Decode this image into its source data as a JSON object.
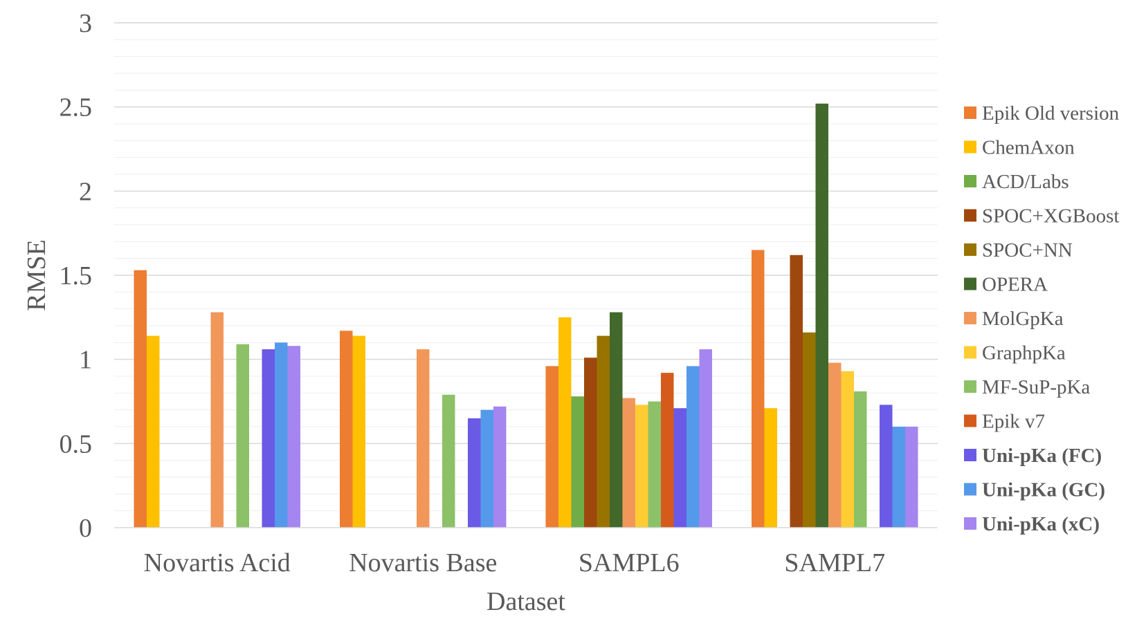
{
  "chart_data": {
    "type": "bar",
    "title": "",
    "xlabel": "Dataset",
    "ylabel": "RMSE",
    "ylim": [
      0,
      3
    ],
    "yticks": [
      "0",
      "0.5",
      "1",
      "1.5",
      "2",
      "2.5",
      "3"
    ],
    "minor_gridline_step": 0.1,
    "legend_position": "right",
    "categories": [
      "Novartis Acid",
      "Novartis Base",
      "SAMPL6",
      "SAMPL7"
    ],
    "series": [
      {
        "name": "Epik Old version",
        "color": "#ED7D31",
        "bold": false,
        "values": [
          1.53,
          1.17,
          0.96,
          1.65
        ]
      },
      {
        "name": "ChemAxon",
        "color": "#FFC000",
        "bold": false,
        "values": [
          1.14,
          1.14,
          1.25,
          0.71
        ]
      },
      {
        "name": "ACD/Labs",
        "color": "#70AD47",
        "bold": false,
        "values": [
          null,
          null,
          0.78,
          null
        ]
      },
      {
        "name": "SPOC+XGBoost",
        "color": "#9E480E",
        "bold": false,
        "values": [
          null,
          null,
          1.01,
          1.62
        ]
      },
      {
        "name": "SPOC+NN",
        "color": "#997300",
        "bold": false,
        "values": [
          null,
          null,
          1.14,
          1.16
        ]
      },
      {
        "name": "OPERA",
        "color": "#43682B",
        "bold": false,
        "values": [
          null,
          null,
          1.28,
          2.52
        ]
      },
      {
        "name": "MolGpKa",
        "color": "#F1975A",
        "bold": false,
        "values": [
          1.28,
          1.06,
          0.77,
          0.98
        ]
      },
      {
        "name": "GraphpKa",
        "color": "#FFCD33",
        "bold": false,
        "values": [
          null,
          null,
          0.73,
          0.93
        ]
      },
      {
        "name": "MF-SuP-pKa",
        "color": "#8CC168",
        "bold": false,
        "values": [
          1.09,
          0.79,
          0.75,
          0.81
        ]
      },
      {
        "name": "Epik v7",
        "color": "#D55A1B",
        "bold": false,
        "values": [
          null,
          null,
          0.92,
          null
        ]
      },
      {
        "name": "Uni-pKa (FC)",
        "color": "#6A5AE6",
        "bold": true,
        "values": [
          1.06,
          0.65,
          0.71,
          0.73
        ]
      },
      {
        "name": "Uni-pKa (GC)",
        "color": "#5599EA",
        "bold": true,
        "values": [
          1.1,
          0.7,
          0.96,
          0.6
        ]
      },
      {
        "name": "Uni-pKa (xC)",
        "color": "#A585F0",
        "bold": true,
        "values": [
          1.08,
          0.72,
          1.06,
          0.6
        ]
      }
    ]
  }
}
